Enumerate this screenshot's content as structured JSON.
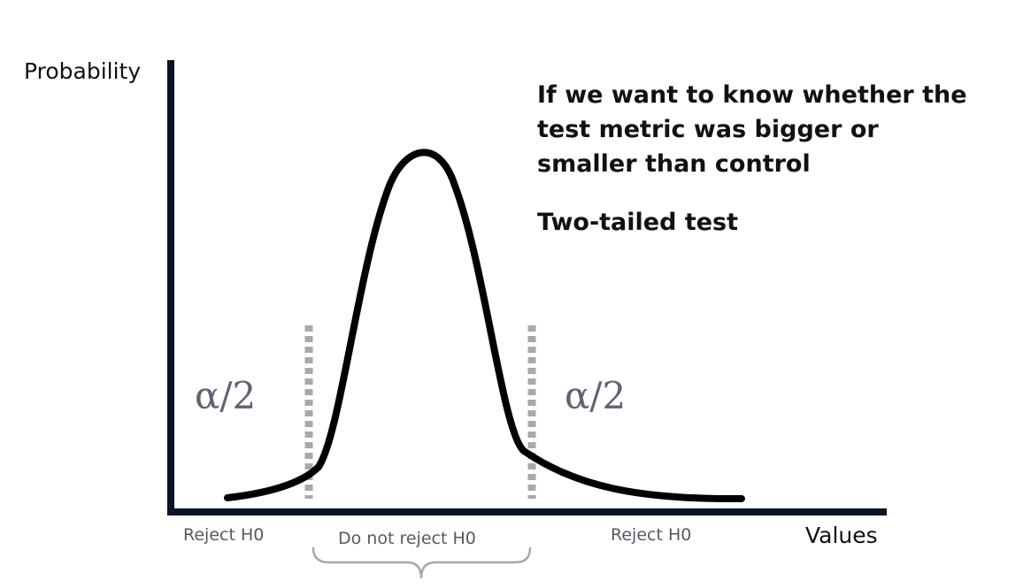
{
  "axes": {
    "y_label": "Probability",
    "x_label": "Values"
  },
  "annotation": {
    "lines": [
      "If we want to know whether the",
      "test metric was bigger or",
      "smaller than control"
    ],
    "test_type": "Two-tailed test"
  },
  "tails": {
    "left_label": "α/2",
    "right_label": "α/2"
  },
  "regions": {
    "left": "Reject H0",
    "middle": "Do not reject H0",
    "right": "Reject H0"
  },
  "colors": {
    "curve": "#000000",
    "axes": "#0b1326",
    "critical_lines": "#a9a9ad",
    "brace": "#a9a9ad",
    "alpha_text": "#5e6472"
  }
}
